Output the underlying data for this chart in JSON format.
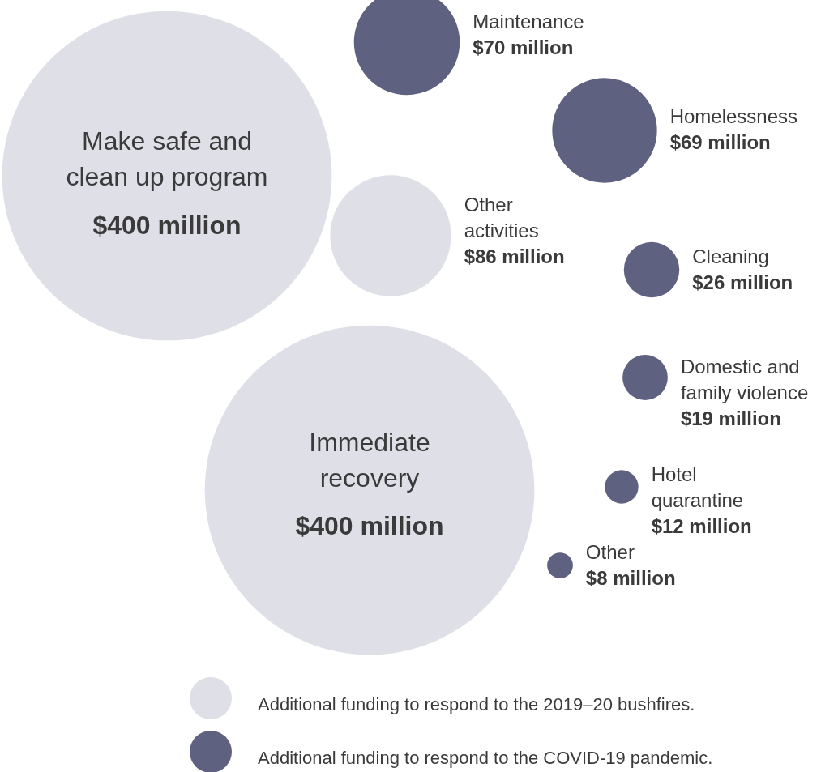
{
  "chart_data": {
    "type": "other",
    "legend": "bottom",
    "categories": [
      "Make safe and clean up program",
      "Immediate recovery",
      "Other activities",
      "Maintenance",
      "Homelessness",
      "Cleaning",
      "Domestic and family violence",
      "Hotel quarantine",
      "Other"
    ],
    "series": [
      {
        "name": "Additional funding to respond to the 2019–20 bushfires.",
        "color": "#dfdfe8",
        "values": [
          400,
          400,
          86,
          null,
          null,
          null,
          null,
          null,
          null
        ],
        "value_labels": [
          "$400 million",
          "$400 million",
          "$86 million",
          null,
          null,
          null,
          null,
          null,
          null
        ]
      },
      {
        "name": "Additional funding to respond to the COVID-19 pandemic.",
        "color": "#5f6180",
        "values": [
          null,
          null,
          null,
          70,
          69,
          26,
          19,
          12,
          8
        ],
        "value_labels": [
          null,
          null,
          null,
          "$70 million",
          "$69 million",
          "$26 million",
          "$19 million",
          "$12 million",
          "$8 million"
        ]
      }
    ]
  }
}
